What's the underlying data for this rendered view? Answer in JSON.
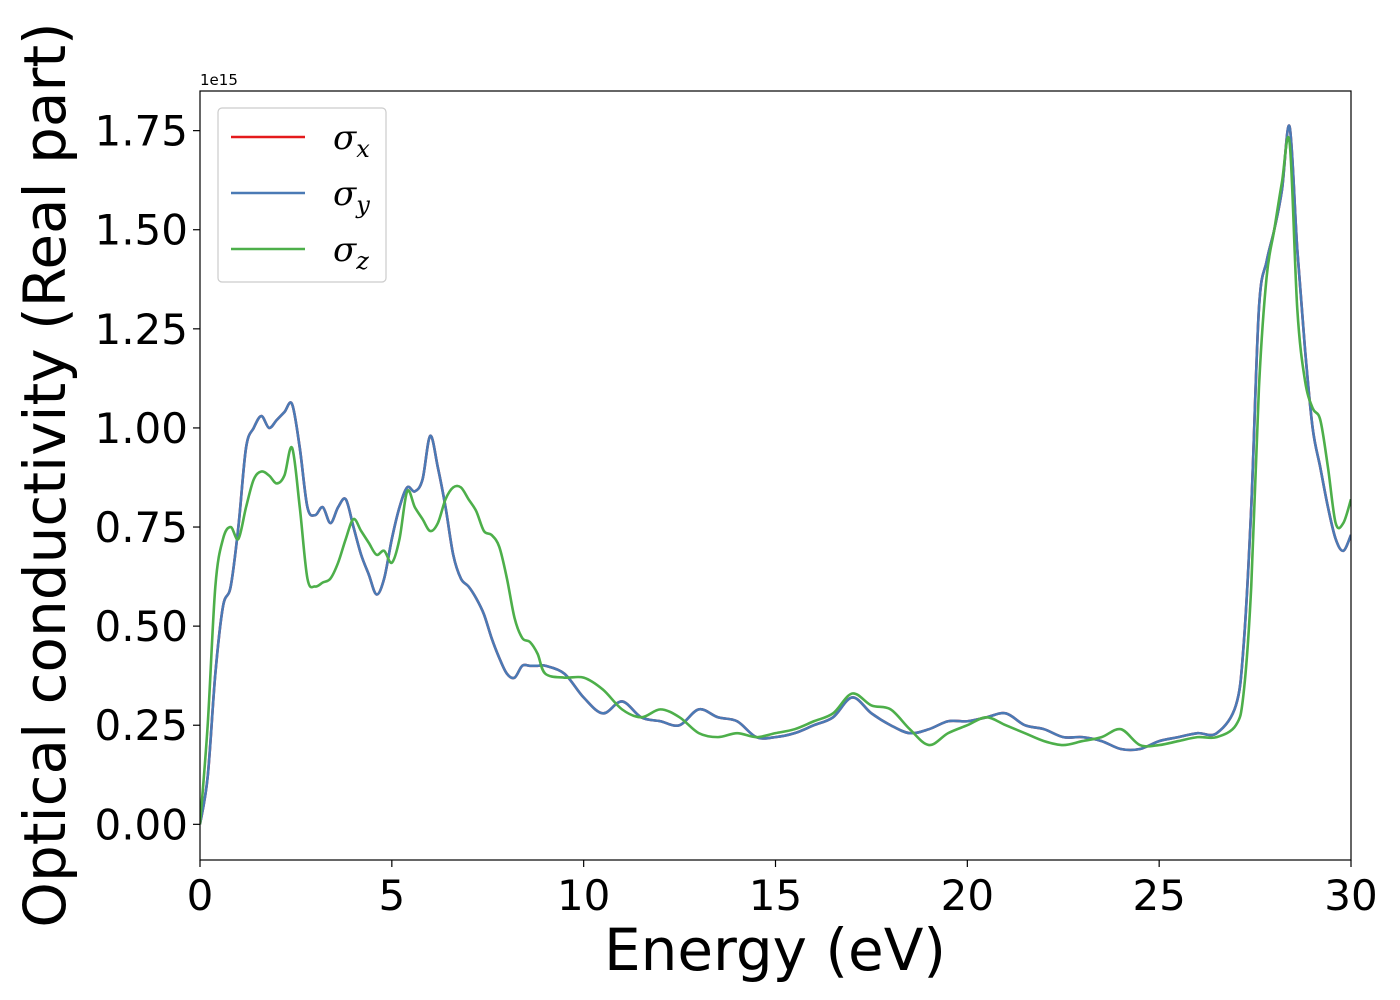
{
  "chart_data": {
    "type": "line",
    "title": "",
    "xlabel": "Energy (eV)",
    "ylabel": "Optical conductivity (Real part)",
    "y_offset_label": "1e15",
    "xlim": [
      0,
      30
    ],
    "ylim": [
      -0.09,
      1.85
    ],
    "x_ticks": [
      0,
      5,
      10,
      15,
      20,
      25,
      30
    ],
    "y_ticks": [
      0.0,
      0.25,
      0.5,
      0.75,
      1.0,
      1.25,
      1.5,
      1.75
    ],
    "x_tick_labels": [
      "0",
      "5",
      "10",
      "15",
      "20",
      "25",
      "30"
    ],
    "y_tick_labels": [
      "0.00",
      "0.25",
      "0.50",
      "0.75",
      "1.00",
      "1.25",
      "1.50",
      "1.75"
    ],
    "grid": false,
    "legend_position": "top-left",
    "series": [
      {
        "name": "σx",
        "symbol": "σ",
        "subscript": "x",
        "color": "#e41a1c",
        "x": [
          0,
          0.2,
          0.4,
          0.6,
          0.8,
          1.0,
          1.2,
          1.4,
          1.6,
          1.8,
          2.0,
          2.2,
          2.4,
          2.6,
          2.8,
          3.0,
          3.2,
          3.4,
          3.6,
          3.8,
          4.0,
          4.2,
          4.4,
          4.6,
          4.8,
          5.0,
          5.2,
          5.4,
          5.6,
          5.8,
          6.0,
          6.2,
          6.4,
          6.6,
          6.8,
          7.0,
          7.2,
          7.4,
          7.6,
          7.8,
          8.0,
          8.2,
          8.4,
          8.6,
          8.8,
          9.0,
          9.5,
          10.0,
          10.5,
          11.0,
          11.5,
          12.0,
          12.5,
          13.0,
          13.5,
          14.0,
          14.5,
          15.0,
          15.5,
          16.0,
          16.5,
          17.0,
          17.5,
          18.0,
          18.5,
          19.0,
          19.5,
          20.0,
          20.5,
          21.0,
          21.5,
          22.0,
          22.5,
          23.0,
          23.5,
          24.0,
          24.5,
          25.0,
          25.5,
          26.0,
          26.5,
          27.0,
          27.2,
          27.4,
          27.6,
          27.8,
          28.0,
          28.2,
          28.4,
          28.6,
          28.8,
          29.0,
          29.2,
          29.4,
          29.6,
          29.8,
          30.0
        ],
        "y": [
          0.0,
          0.12,
          0.38,
          0.55,
          0.6,
          0.75,
          0.95,
          1.0,
          1.03,
          1.0,
          1.02,
          1.04,
          1.06,
          0.95,
          0.8,
          0.78,
          0.8,
          0.76,
          0.8,
          0.82,
          0.75,
          0.68,
          0.63,
          0.58,
          0.62,
          0.72,
          0.8,
          0.85,
          0.84,
          0.87,
          0.98,
          0.9,
          0.8,
          0.68,
          0.62,
          0.6,
          0.57,
          0.53,
          0.47,
          0.42,
          0.38,
          0.37,
          0.4,
          0.4,
          0.4,
          0.4,
          0.38,
          0.32,
          0.28,
          0.31,
          0.27,
          0.26,
          0.25,
          0.29,
          0.27,
          0.26,
          0.22,
          0.22,
          0.23,
          0.25,
          0.27,
          0.32,
          0.28,
          0.25,
          0.23,
          0.24,
          0.26,
          0.26,
          0.27,
          0.28,
          0.25,
          0.24,
          0.22,
          0.22,
          0.21,
          0.19,
          0.19,
          0.21,
          0.22,
          0.23,
          0.23,
          0.3,
          0.45,
          0.8,
          1.3,
          1.42,
          1.5,
          1.6,
          1.76,
          1.45,
          1.2,
          1.0,
          0.9,
          0.8,
          0.72,
          0.69,
          0.73
        ]
      },
      {
        "name": "σy",
        "symbol": "σ",
        "subscript": "y",
        "color": "#4a7ab5",
        "x": [
          0,
          0.2,
          0.4,
          0.6,
          0.8,
          1.0,
          1.2,
          1.4,
          1.6,
          1.8,
          2.0,
          2.2,
          2.4,
          2.6,
          2.8,
          3.0,
          3.2,
          3.4,
          3.6,
          3.8,
          4.0,
          4.2,
          4.4,
          4.6,
          4.8,
          5.0,
          5.2,
          5.4,
          5.6,
          5.8,
          6.0,
          6.2,
          6.4,
          6.6,
          6.8,
          7.0,
          7.2,
          7.4,
          7.6,
          7.8,
          8.0,
          8.2,
          8.4,
          8.6,
          8.8,
          9.0,
          9.5,
          10.0,
          10.5,
          11.0,
          11.5,
          12.0,
          12.5,
          13.0,
          13.5,
          14.0,
          14.5,
          15.0,
          15.5,
          16.0,
          16.5,
          17.0,
          17.5,
          18.0,
          18.5,
          19.0,
          19.5,
          20.0,
          20.5,
          21.0,
          21.5,
          22.0,
          22.5,
          23.0,
          23.5,
          24.0,
          24.5,
          25.0,
          25.5,
          26.0,
          26.5,
          27.0,
          27.2,
          27.4,
          27.6,
          27.8,
          28.0,
          28.2,
          28.4,
          28.6,
          28.8,
          29.0,
          29.2,
          29.4,
          29.6,
          29.8,
          30.0
        ],
        "y": [
          0.0,
          0.12,
          0.38,
          0.55,
          0.6,
          0.75,
          0.95,
          1.0,
          1.03,
          1.0,
          1.02,
          1.04,
          1.06,
          0.95,
          0.8,
          0.78,
          0.8,
          0.76,
          0.8,
          0.82,
          0.75,
          0.68,
          0.63,
          0.58,
          0.62,
          0.72,
          0.8,
          0.85,
          0.84,
          0.87,
          0.98,
          0.9,
          0.8,
          0.68,
          0.62,
          0.6,
          0.57,
          0.53,
          0.47,
          0.42,
          0.38,
          0.37,
          0.4,
          0.4,
          0.4,
          0.4,
          0.38,
          0.32,
          0.28,
          0.31,
          0.27,
          0.26,
          0.25,
          0.29,
          0.27,
          0.26,
          0.22,
          0.22,
          0.23,
          0.25,
          0.27,
          0.32,
          0.28,
          0.25,
          0.23,
          0.24,
          0.26,
          0.26,
          0.27,
          0.28,
          0.25,
          0.24,
          0.22,
          0.22,
          0.21,
          0.19,
          0.19,
          0.21,
          0.22,
          0.23,
          0.23,
          0.3,
          0.45,
          0.8,
          1.3,
          1.42,
          1.5,
          1.6,
          1.76,
          1.45,
          1.2,
          1.0,
          0.9,
          0.8,
          0.72,
          0.69,
          0.73
        ]
      },
      {
        "name": "σz",
        "symbol": "σ",
        "subscript": "z",
        "color": "#4daf4a",
        "x": [
          0,
          0.2,
          0.4,
          0.6,
          0.8,
          1.0,
          1.2,
          1.4,
          1.6,
          1.8,
          2.0,
          2.2,
          2.4,
          2.6,
          2.8,
          3.0,
          3.2,
          3.4,
          3.6,
          3.8,
          4.0,
          4.2,
          4.4,
          4.6,
          4.8,
          5.0,
          5.2,
          5.4,
          5.6,
          5.8,
          6.0,
          6.2,
          6.4,
          6.6,
          6.8,
          7.0,
          7.2,
          7.4,
          7.6,
          7.8,
          8.0,
          8.2,
          8.4,
          8.6,
          8.8,
          9.0,
          9.5,
          10.0,
          10.5,
          11.0,
          11.5,
          12.0,
          12.5,
          13.0,
          13.5,
          14.0,
          14.5,
          15.0,
          15.5,
          16.0,
          16.5,
          17.0,
          17.5,
          18.0,
          18.5,
          19.0,
          19.5,
          20.0,
          20.5,
          21.0,
          21.5,
          22.0,
          22.5,
          23.0,
          23.5,
          24.0,
          24.5,
          25.0,
          25.5,
          26.0,
          26.5,
          27.0,
          27.2,
          27.4,
          27.6,
          27.8,
          28.0,
          28.2,
          28.4,
          28.6,
          28.8,
          29.0,
          29.2,
          29.4,
          29.6,
          29.8,
          30.0
        ],
        "y": [
          0.0,
          0.25,
          0.6,
          0.72,
          0.75,
          0.72,
          0.8,
          0.87,
          0.89,
          0.88,
          0.86,
          0.88,
          0.95,
          0.8,
          0.62,
          0.6,
          0.61,
          0.62,
          0.66,
          0.72,
          0.77,
          0.74,
          0.71,
          0.68,
          0.69,
          0.66,
          0.72,
          0.84,
          0.8,
          0.77,
          0.74,
          0.76,
          0.82,
          0.85,
          0.85,
          0.82,
          0.79,
          0.74,
          0.73,
          0.7,
          0.62,
          0.52,
          0.47,
          0.46,
          0.43,
          0.38,
          0.37,
          0.37,
          0.34,
          0.29,
          0.27,
          0.29,
          0.27,
          0.23,
          0.22,
          0.23,
          0.22,
          0.23,
          0.24,
          0.26,
          0.28,
          0.33,
          0.3,
          0.29,
          0.24,
          0.2,
          0.23,
          0.25,
          0.27,
          0.25,
          0.23,
          0.21,
          0.2,
          0.21,
          0.22,
          0.24,
          0.2,
          0.2,
          0.21,
          0.22,
          0.22,
          0.25,
          0.33,
          0.6,
          1.1,
          1.38,
          1.5,
          1.62,
          1.72,
          1.3,
          1.12,
          1.05,
          1.02,
          0.9,
          0.76,
          0.76,
          0.82
        ]
      }
    ]
  }
}
